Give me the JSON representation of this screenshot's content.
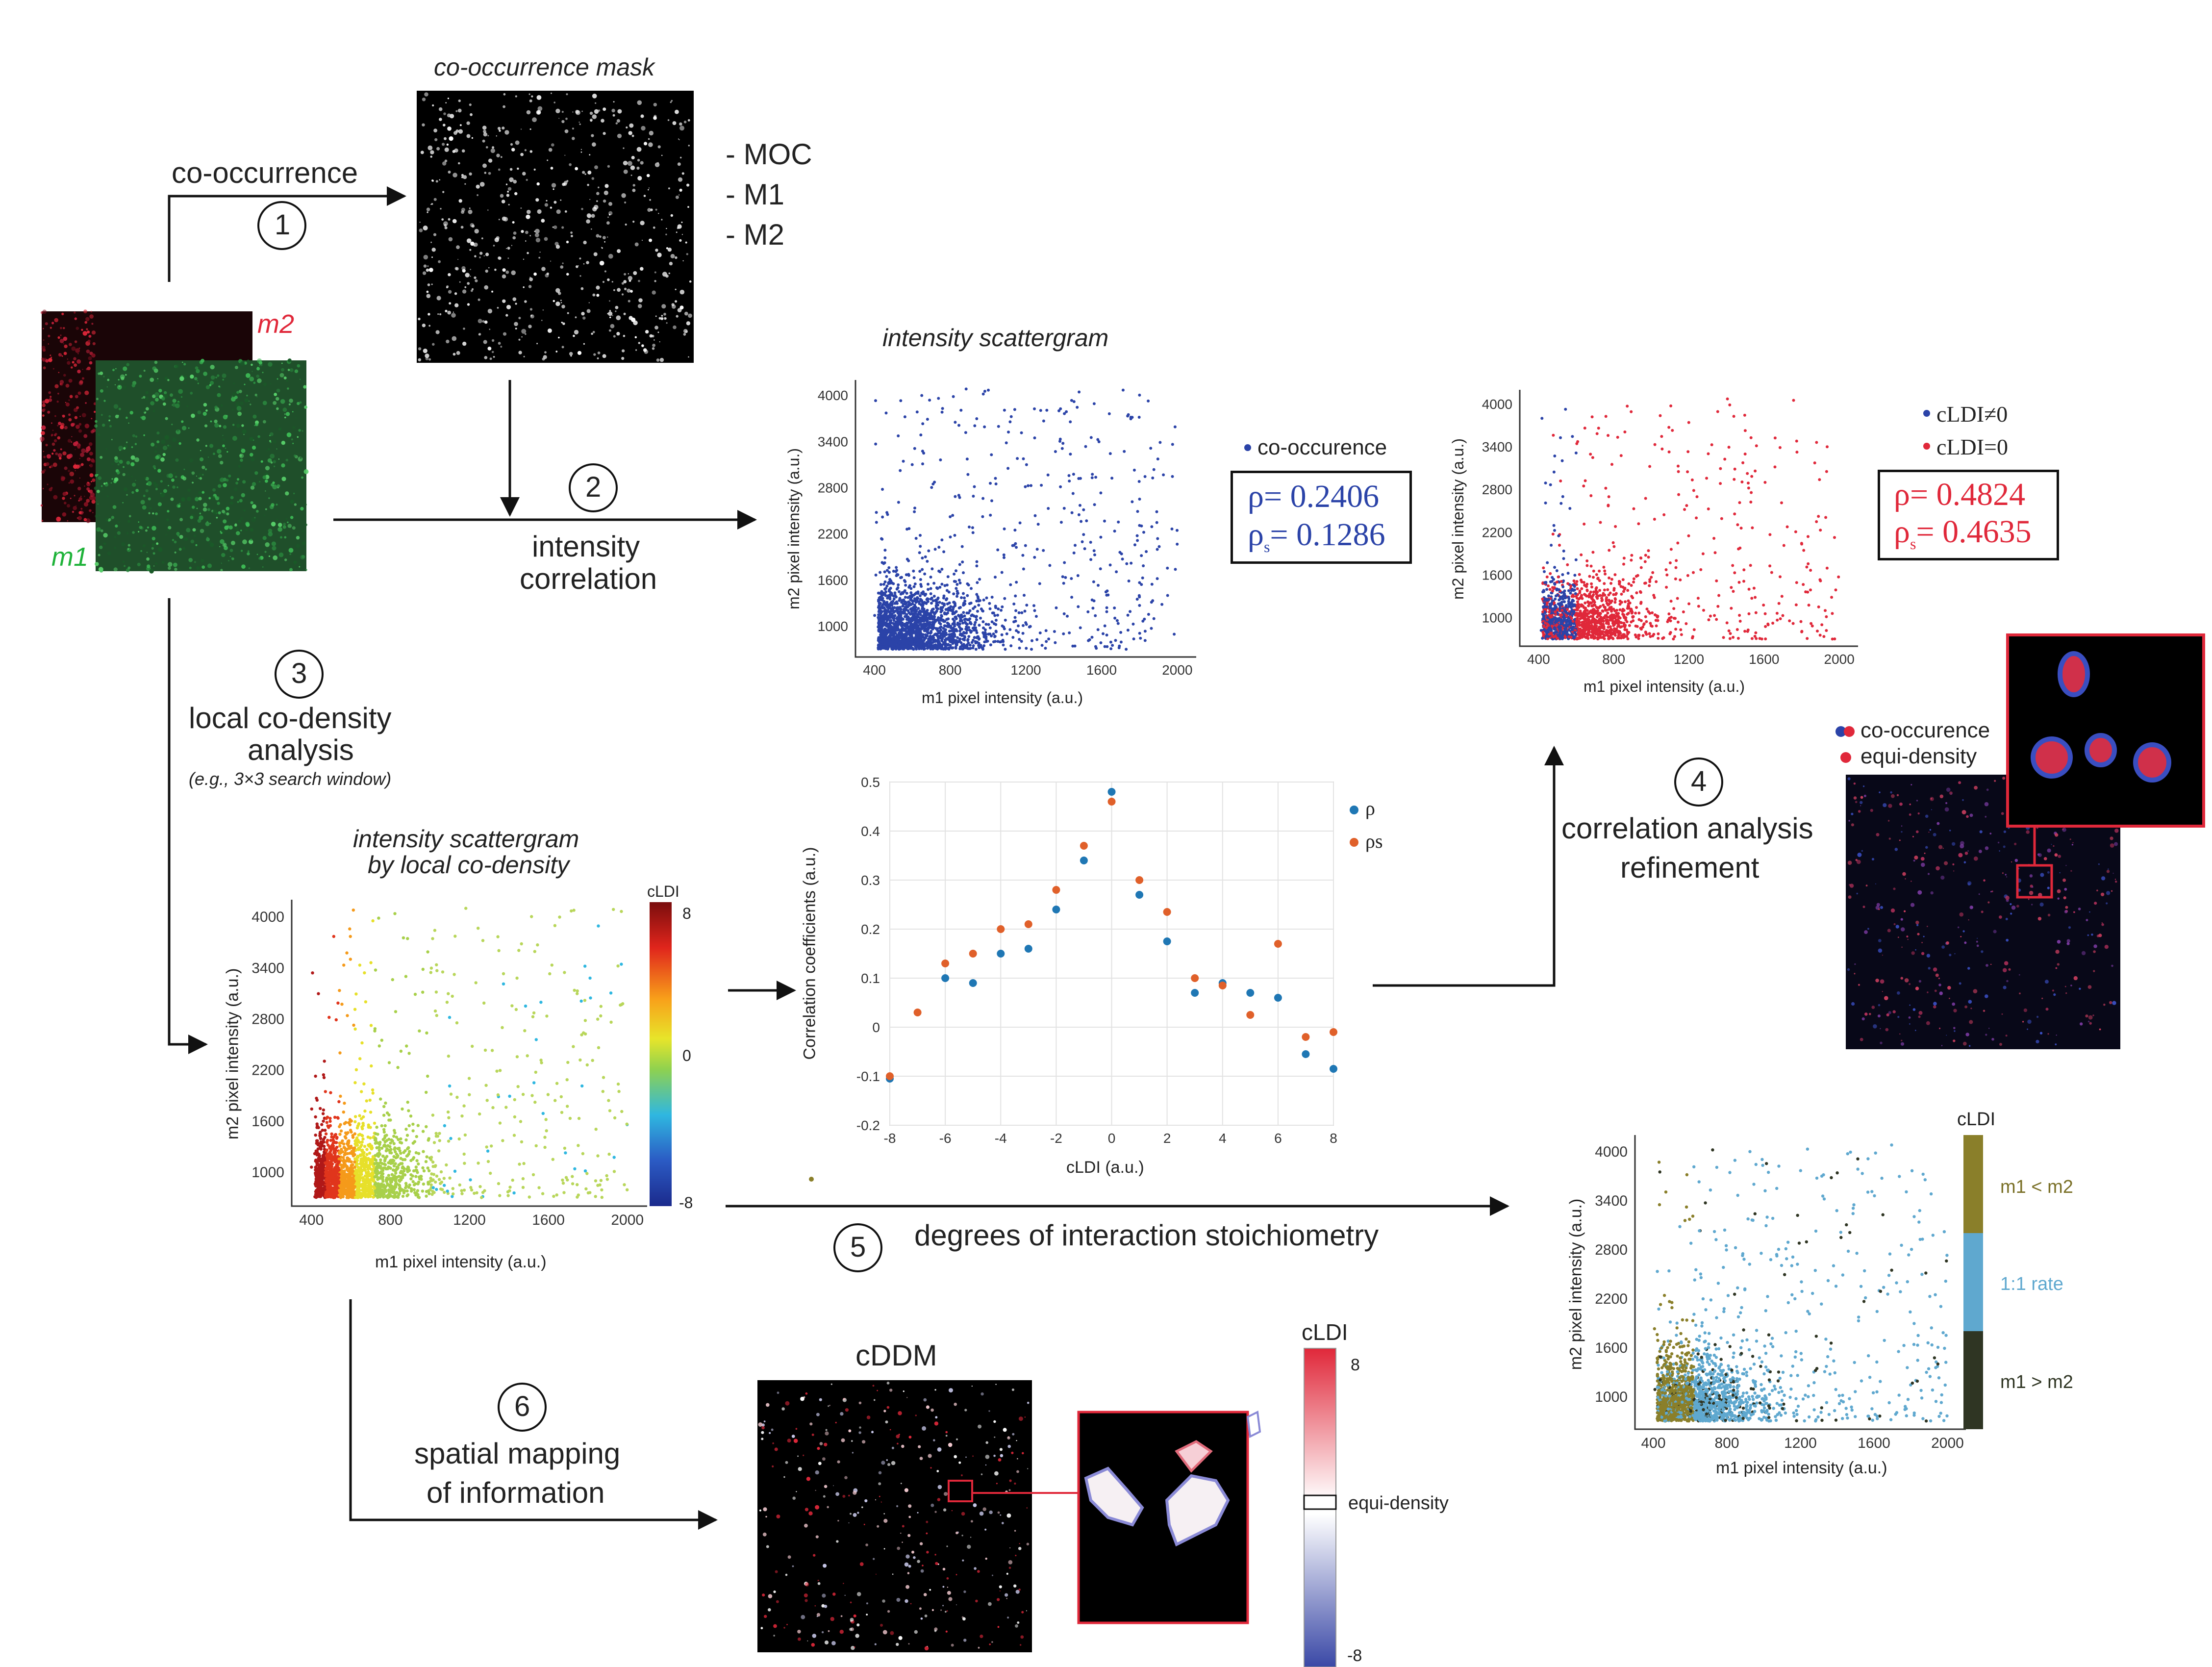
{
  "colors": {
    "blue": "#2b43a8",
    "red": "#e0283a",
    "steel": "#1f77b4",
    "orange": "#e0602a",
    "olive": "#8a7f2a",
    "light_blue": "#5fa8cf",
    "dark_olive": "#2f3523",
    "green": "#1fb33a"
  },
  "labels": {
    "co_occurrence_arrow": "co-occurrence",
    "mask_title": "co-occurrence mask",
    "coloc_list": [
      "- MOC",
      "- M1",
      "- M2"
    ],
    "channel_m2": "m2",
    "channel_m1": "m1",
    "step1": "1",
    "step2": "2",
    "step3": "3",
    "step4": "4",
    "step5": "5",
    "step6": "6",
    "intensity_corr_1": "intensity",
    "intensity_corr_2": "correlation",
    "lcd_1": "local co-density",
    "lcd_2": "analysis",
    "lcd_note": "(e.g., 3×3 search window)",
    "refine_1": "correlation analysis",
    "refine_2": "refinement",
    "stoich": "degrees of interaction stoichiometry",
    "spatial_1": "spatial mapping",
    "spatial_2": "of information",
    "cddm_title": "cDDM",
    "cldi": "cLDI",
    "equi_density": "equi-density",
    "co_occurence": "co-occurence"
  },
  "stats_box1": {
    "rho_label": "ρ",
    "rho_value": "= 0.2406",
    "rhos_label": "ρ",
    "rhos_sub": "s",
    "rhos_value": "= 0.1286"
  },
  "stats_box2": {
    "rho_label": "ρ",
    "rho_value": "= 0.4824",
    "rhos_label": "ρ",
    "rhos_sub": "s",
    "rhos_value": "= 0.4635"
  },
  "chart_data": [
    {
      "id": "scatter_cooccurrence",
      "type": "scatter",
      "title": "intensity scattergram",
      "xlabel": "m1 pixel intensity (a.u.)",
      "ylabel": "m2 pixel intensity (a.u.)",
      "xlim": [
        300,
        2100
      ],
      "ylim": [
        600,
        4200
      ],
      "xticks": [
        400,
        800,
        1200,
        1600,
        2000
      ],
      "yticks": [
        1000,
        1600,
        2200,
        2800,
        3400,
        4000
      ],
      "legend": [
        "co-occurence"
      ]
    },
    {
      "id": "scatter_cldi_split",
      "type": "scatter",
      "xlabel": "m1 pixel intensity (a.u.)",
      "ylabel": "m2 pixel intensity (a.u.)",
      "xlim": [
        300,
        2100
      ],
      "ylim": [
        600,
        4200
      ],
      "xticks": [
        400,
        800,
        1200,
        1600,
        2000
      ],
      "yticks": [
        1000,
        1600,
        2200,
        2800,
        3400,
        4000
      ],
      "legend": [
        "cLDI≠0",
        "cLDI=0"
      ]
    },
    {
      "id": "scatter_local_codensity",
      "type": "scatter",
      "title": "intensity scattergram",
      "subtitle": "by local co-density",
      "xlabel": "m1 pixel intensity (a.u.)",
      "ylabel": "m2 pixel intensity (a.u.)",
      "xlim": [
        300,
        2100
      ],
      "ylim": [
        600,
        4200
      ],
      "xticks": [
        400,
        800,
        1200,
        1600,
        2000
      ],
      "yticks": [
        1000,
        1600,
        2200,
        2800,
        3400,
        4000
      ],
      "colorbar": {
        "label": "cLDI",
        "ticks": [
          "8",
          "0",
          "-8"
        ]
      }
    },
    {
      "id": "correlation_vs_cldi",
      "type": "scatter",
      "xlabel": "cLDI (a.u.)",
      "ylabel": "Correlation coefficients (a.u.)",
      "xlim": [
        -8,
        8
      ],
      "ylim": [
        -0.2,
        0.5
      ],
      "xticks": [
        -8,
        -6,
        -4,
        -2,
        0,
        2,
        4,
        6,
        8
      ],
      "yticks": [
        -0.2,
        -0.1,
        0,
        0.1,
        0.2,
        0.3,
        0.4,
        0.5
      ],
      "grid": true,
      "x": [
        -8,
        -7,
        -6,
        -5,
        -4,
        -3,
        -2,
        -1,
        0,
        1,
        2,
        3,
        4,
        5,
        6,
        7,
        8
      ],
      "series": [
        {
          "name": "ρ",
          "values": [
            -0.105,
            null,
            0.1,
            0.09,
            0.15,
            0.16,
            0.24,
            0.34,
            0.48,
            0.27,
            0.175,
            0.07,
            0.09,
            0.07,
            0.06,
            -0.055,
            -0.085
          ]
        },
        {
          "name": "ρs",
          "values": [
            -0.1,
            0.03,
            0.13,
            0.15,
            0.2,
            0.21,
            0.28,
            0.37,
            0.46,
            0.3,
            0.235,
            0.1,
            0.085,
            0.025,
            0.17,
            -0.02,
            -0.01
          ]
        }
      ]
    },
    {
      "id": "scatter_stoichiometry",
      "type": "scatter",
      "xlabel": "m1 pixel intensity (a.u.)",
      "ylabel": "m2 pixel intensity (a.u.)",
      "xlim": [
        300,
        2100
      ],
      "ylim": [
        600,
        4200
      ],
      "xticks": [
        400,
        800,
        1200,
        1600,
        2000
      ],
      "yticks": [
        1000,
        1600,
        2200,
        2800,
        3400,
        4000
      ],
      "colorbar": {
        "label": "cLDI",
        "categories": [
          "m1 < m2",
          "1:1 rate",
          "m1 > m2"
        ]
      }
    },
    {
      "id": "cddm_colorbar",
      "type": "heatmap",
      "colorbar": {
        "label": "cLDI",
        "ticks": [
          "8",
          "-8"
        ],
        "middle": "equi-density"
      }
    }
  ]
}
